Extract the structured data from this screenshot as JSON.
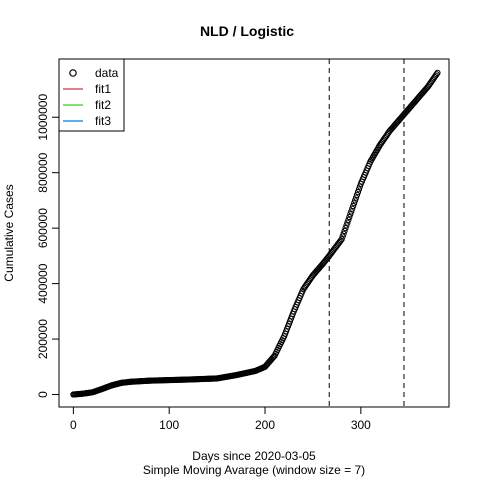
{
  "chart_data": {
    "type": "scatter",
    "title": "NLD / Logistic",
    "xlabel": "Days since 2020-03-05",
    "xlabel2": "Simple Moving Avarage (window size = 7)",
    "ylabel": "Cumulative Cases",
    "xlim": [
      -15,
      392
    ],
    "ylim": [
      -45000,
      1210000
    ],
    "x_ticks": [
      0,
      100,
      200,
      300
    ],
    "y_ticks": [
      0,
      200000,
      400000,
      600000,
      800000,
      1000000
    ],
    "vlines": [
      267,
      345
    ],
    "legend": {
      "position": "top-left",
      "entries": [
        {
          "name": "data",
          "symbol": "circle",
          "color": "#000000"
        },
        {
          "name": "fit1",
          "symbol": "line",
          "color": "#DF536B"
        },
        {
          "name": "fit2",
          "symbol": "line",
          "color": "#61D04F"
        },
        {
          "name": "fit3",
          "symbol": "line",
          "color": "#2297E6"
        }
      ]
    },
    "series": [
      {
        "name": "data",
        "x": [
          0,
          10,
          20,
          30,
          40,
          50,
          60,
          80,
          100,
          120,
          150,
          170,
          190,
          200,
          210,
          220,
          230,
          240,
          250,
          260,
          267,
          280,
          290,
          300,
          310,
          320,
          330,
          345,
          360,
          370,
          380
        ],
        "y": [
          0,
          3000,
          8000,
          20000,
          33000,
          42000,
          46000,
          50000,
          52000,
          54000,
          58000,
          70000,
          85000,
          100000,
          140000,
          210000,
          300000,
          380000,
          430000,
          470000,
          500000,
          560000,
          660000,
          760000,
          840000,
          900000,
          950000,
          1010000,
          1070000,
          1110000,
          1160000
        ]
      }
    ]
  }
}
